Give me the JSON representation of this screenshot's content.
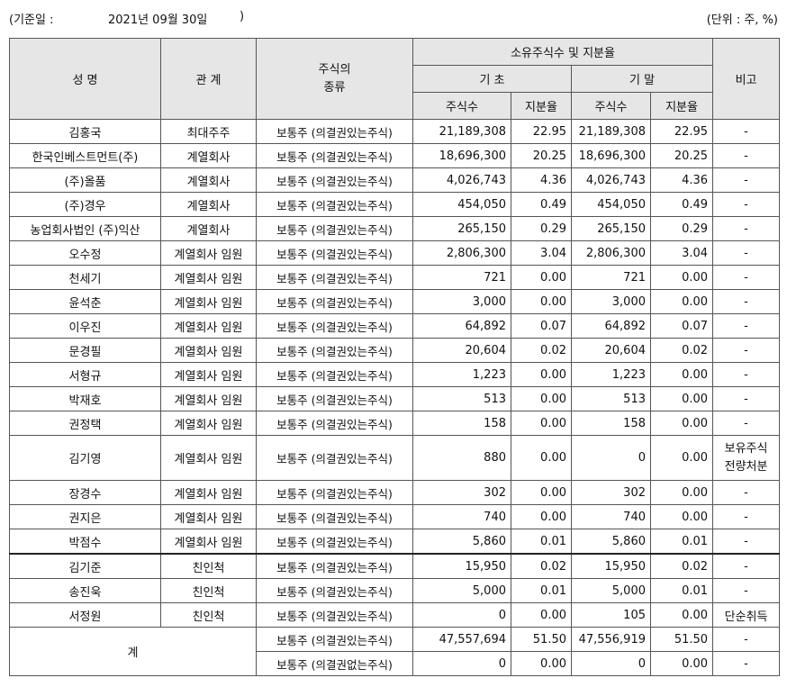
{
  "header": {
    "basis_label": "(기준일 :",
    "basis_date": "2021년 09월 30일",
    "basis_close": ")",
    "unit": "(단위 : 주, %)"
  },
  "table": {
    "columns": {
      "name": "성 명",
      "relation": "관 계",
      "kind": [
        "주식의",
        "종류"
      ],
      "holdings": "소유주식수 및 지분율",
      "begin": "기 초",
      "end": "기 말",
      "shares": "주식수",
      "ratio": "지분율",
      "shares_end": "주식수",
      "ratio_end": "지분율",
      "note": "비고"
    },
    "rows": [
      {
        "name": "김홍국",
        "relation": "최대주주",
        "kind": "보통주 (의결권있는주식)",
        "begin_shares": "21,189,308",
        "begin_ratio": "22.95",
        "end_shares": "21,189,308",
        "end_ratio": "22.95",
        "note": "-"
      },
      {
        "name": "한국인베스트먼트(주)",
        "relation": "계열회사",
        "kind": "보통주 (의결권있는주식)",
        "begin_shares": "18,696,300",
        "begin_ratio": "20.25",
        "end_shares": "18,696,300",
        "end_ratio": "20.25",
        "note": "-"
      },
      {
        "name": "(주)올품",
        "relation": "계열회사",
        "kind": "보통주 (의결권있는주식)",
        "begin_shares": "4,026,743",
        "begin_ratio": "4.36",
        "end_shares": "4,026,743",
        "end_ratio": "4.36",
        "note": "-"
      },
      {
        "name": "(주)경우",
        "relation": "계열회사",
        "kind": "보통주 (의결권있는주식)",
        "begin_shares": "454,050",
        "begin_ratio": "0.49",
        "end_shares": "454,050",
        "end_ratio": "0.49",
        "note": "-"
      },
      {
        "name": "농업회사법인 (주)익산",
        "relation": "계열회사",
        "kind": "보통주 (의결권있는주식)",
        "begin_shares": "265,150",
        "begin_ratio": "0.29",
        "end_shares": "265,150",
        "end_ratio": "0.29",
        "note": "-"
      },
      {
        "name": "오수정",
        "relation": "계열회사 임원",
        "kind": "보통주 (의결권있는주식)",
        "begin_shares": "2,806,300",
        "begin_ratio": "3.04",
        "end_shares": "2,806,300",
        "end_ratio": "3.04",
        "note": "-"
      },
      {
        "name": "천세기",
        "relation": "계열회사 임원",
        "kind": "보통주 (의결권있는주식)",
        "begin_shares": "721",
        "begin_ratio": "0.00",
        "end_shares": "721",
        "end_ratio": "0.00",
        "note": "-"
      },
      {
        "name": "윤석춘",
        "relation": "계열회사 임원",
        "kind": "보통주 (의결권있는주식)",
        "begin_shares": "3,000",
        "begin_ratio": "0.00",
        "end_shares": "3,000",
        "end_ratio": "0.00",
        "note": "-"
      },
      {
        "name": "이우진",
        "relation": "계열회사 임원",
        "kind": "보통주 (의결권있는주식)",
        "begin_shares": "64,892",
        "begin_ratio": "0.07",
        "end_shares": "64,892",
        "end_ratio": "0.07",
        "note": "-"
      },
      {
        "name": "문경필",
        "relation": "계열회사 임원",
        "kind": "보통주 (의결권있는주식)",
        "begin_shares": "20,604",
        "begin_ratio": "0.02",
        "end_shares": "20,604",
        "end_ratio": "0.02",
        "note": "-"
      },
      {
        "name": "서형규",
        "relation": "계열회사 임원",
        "kind": "보통주 (의결권있는주식)",
        "begin_shares": "1,223",
        "begin_ratio": "0.00",
        "end_shares": "1,223",
        "end_ratio": "0.00",
        "note": "-"
      },
      {
        "name": "박재호",
        "relation": "계열회사 임원",
        "kind": "보통주 (의결권있는주식)",
        "begin_shares": "513",
        "begin_ratio": "0.00",
        "end_shares": "513",
        "end_ratio": "0.00",
        "note": "-"
      },
      {
        "name": "권정택",
        "relation": "계열회사 임원",
        "kind": "보통주 (의결권있는주식)",
        "begin_shares": "158",
        "begin_ratio": "0.00",
        "end_shares": "158",
        "end_ratio": "0.00",
        "note": "-"
      },
      {
        "name": "김기영",
        "relation": "계열회사 임원",
        "kind": "보통주 (의결권있는주식)",
        "begin_shares": "880",
        "begin_ratio": "0.00",
        "end_shares": "0",
        "end_ratio": "0.00",
        "note": [
          "보유주식",
          "전량처분"
        ]
      },
      {
        "name": "장경수",
        "relation": "계열회사 임원",
        "kind": "보통주 (의결권있는주식)",
        "begin_shares": "302",
        "begin_ratio": "0.00",
        "end_shares": "302",
        "end_ratio": "0.00",
        "note": "-"
      },
      {
        "name": "권지은",
        "relation": "계열회사 임원",
        "kind": "보통주 (의결권있는주식)",
        "begin_shares": "740",
        "begin_ratio": "0.00",
        "end_shares": "740",
        "end_ratio": "0.00",
        "note": "-"
      },
      {
        "name": "박점수",
        "relation": "계열회사 임원",
        "kind": "보통주 (의결권있는주식)",
        "begin_shares": "5,860",
        "begin_ratio": "0.01",
        "end_shares": "5,860",
        "end_ratio": "0.01",
        "note": "-"
      },
      {
        "name": "김기준",
        "relation": "친인척",
        "kind": "보통주 (의결권있는주식)",
        "begin_shares": "15,950",
        "begin_ratio": "0.02",
        "end_shares": "15,950",
        "end_ratio": "0.02",
        "note": "-"
      },
      {
        "name": "송진욱",
        "relation": "친인척",
        "kind": "보통주 (의결권있는주식)",
        "begin_shares": "5,000",
        "begin_ratio": "0.01",
        "end_shares": "5,000",
        "end_ratio": "0.01",
        "note": "-"
      },
      {
        "name": "서정원",
        "relation": "친인척",
        "kind": "보통주 (의결권있는주식)",
        "begin_shares": "0",
        "begin_ratio": "0.00",
        "end_shares": "105",
        "end_ratio": "0.00",
        "note": "단순취득"
      }
    ],
    "total": {
      "label": "계",
      "rows": [
        {
          "kind": "보통주 (의결권있는주식)",
          "begin_shares": "47,557,694",
          "begin_ratio": "51.50",
          "end_shares": "47,556,919",
          "end_ratio": "51.50",
          "note": "-"
        },
        {
          "kind": "보통주 (의결권없는주식)",
          "begin_shares": "0",
          "begin_ratio": "0.00",
          "end_shares": "0",
          "end_ratio": "0.00",
          "note": "-"
        }
      ]
    }
  }
}
